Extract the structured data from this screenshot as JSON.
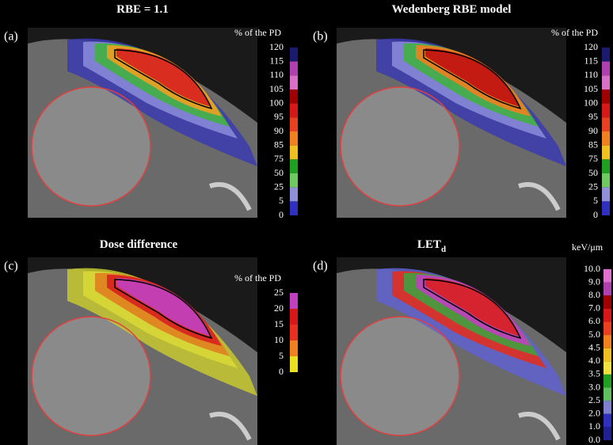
{
  "panels": [
    {
      "label": "(a)",
      "title": "RBE = 1.1",
      "colorbar_unit": "% of the PD",
      "colorbar_ticks": [
        "120",
        "115",
        "110",
        "105",
        "100",
        "95",
        "90",
        "85",
        "75",
        "50",
        "25",
        "5",
        "0"
      ],
      "colorbar_colors": [
        "#1a1a6e",
        "#b040b0",
        "#d870c8",
        "#a00000",
        "#d81818",
        "#e84020",
        "#f08020",
        "#f0c020",
        "#20a020",
        "#70c860",
        "#9090d8",
        "#3030c0"
      ]
    },
    {
      "label": "(b)",
      "title": "Wedenberg RBE model",
      "colorbar_unit": "% of the PD",
      "colorbar_ticks": [
        "120",
        "115",
        "110",
        "105",
        "100",
        "95",
        "90",
        "85",
        "75",
        "50",
        "25",
        "5",
        "0"
      ],
      "colorbar_colors": [
        "#1a1a6e",
        "#b040b0",
        "#d870c8",
        "#a00000",
        "#d81818",
        "#e84020",
        "#f08020",
        "#f0c020",
        "#20a020",
        "#70c860",
        "#9090d8",
        "#3030c0"
      ]
    },
    {
      "label": "(c)",
      "title": "Dose difference",
      "colorbar_unit": "% of the PD",
      "colorbar_ticks": [
        "25",
        "20",
        "15",
        "10",
        "5",
        "0"
      ],
      "colorbar_colors": [
        "#c040c0",
        "#d81818",
        "#e83020",
        "#f08020",
        "#e8e020"
      ]
    },
    {
      "label": "(d)",
      "title": "LET",
      "title_subscript": "d",
      "colorbar_unit": "keV/μm",
      "colorbar_ticks": [
        "10.0",
        "9.0",
        "8.0",
        "7.0",
        "6.0",
        "5.0",
        "4.5",
        "4.0",
        "3.5",
        "3.0",
        "2.5",
        "2.0",
        "1.0",
        "0.0"
      ],
      "colorbar_colors": [
        "#e070d0",
        "#b040b0",
        "#a00000",
        "#d81818",
        "#e84020",
        "#f08020",
        "#f0c020",
        "#f0e040",
        "#20a020",
        "#60c060",
        "#8080d0",
        "#3030c0",
        "#202090"
      ]
    }
  ]
}
